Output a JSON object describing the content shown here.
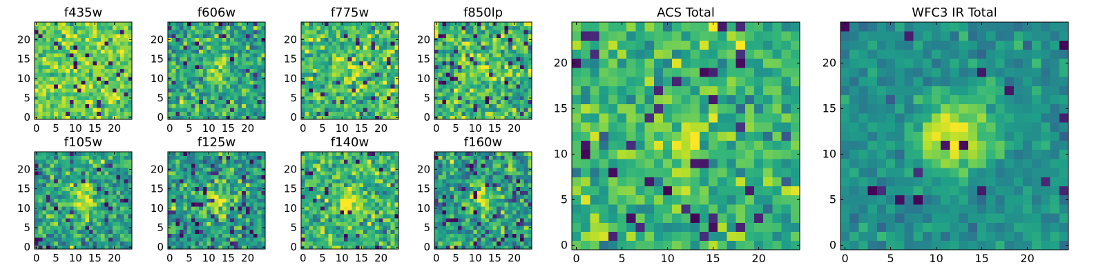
{
  "figure": {
    "background": "#ffffff",
    "colormap": "viridis",
    "colormap_stops": [
      "#440154",
      "#482878",
      "#3e4989",
      "#31688e",
      "#26828e",
      "#1f9e89",
      "#35b779",
      "#6ece58",
      "#b5de2b",
      "#fde725"
    ]
  },
  "chart_data": [
    {
      "type": "heatmap",
      "title": "f435w",
      "grid_size": 25,
      "xlim": [
        -0.5,
        24.5
      ],
      "ylim": [
        -0.5,
        24.5
      ],
      "xticks": [
        0,
        5,
        10,
        15,
        20
      ],
      "yticks": [
        0,
        5,
        10,
        15,
        20
      ],
      "origin": "lower",
      "grid": false,
      "colormap": "viridis",
      "background_level": 0.78,
      "noise": 0.12,
      "dark_pixel_rate": 0.05,
      "source": {
        "x": 12,
        "y": 13,
        "sigma": 2.5,
        "amplitude": 0.02
      }
    },
    {
      "type": "heatmap",
      "title": "f606w",
      "grid_size": 25,
      "xlim": [
        -0.5,
        24.5
      ],
      "ylim": [
        -0.5,
        24.5
      ],
      "xticks": [
        0,
        5,
        10,
        15,
        20
      ],
      "yticks": [
        0,
        5,
        10,
        15,
        20
      ],
      "origin": "lower",
      "grid": false,
      "colormap": "viridis",
      "background_level": 0.6,
      "noise": 0.15,
      "dark_pixel_rate": 0.04,
      "source": {
        "x": 12,
        "y": 13,
        "sigma": 2.2,
        "amplitude": 0.25
      }
    },
    {
      "type": "heatmap",
      "title": "f775w",
      "grid_size": 25,
      "xlim": [
        -0.5,
        24.5
      ],
      "ylim": [
        -0.5,
        24.5
      ],
      "xticks": [
        0,
        5,
        10,
        15,
        20
      ],
      "yticks": [
        0,
        5,
        10,
        15,
        20
      ],
      "origin": "lower",
      "grid": false,
      "colormap": "viridis",
      "background_level": 0.68,
      "noise": 0.15,
      "dark_pixel_rate": 0.05,
      "source": {
        "x": 12,
        "y": 13,
        "sigma": 2.2,
        "amplitude": 0.18
      }
    },
    {
      "type": "heatmap",
      "title": "f850lp",
      "grid_size": 25,
      "xlim": [
        -0.5,
        24.5
      ],
      "ylim": [
        -0.5,
        24.5
      ],
      "xticks": [
        0,
        5,
        10,
        15,
        20
      ],
      "yticks": [
        0,
        5,
        10,
        15,
        20
      ],
      "origin": "lower",
      "grid": false,
      "colormap": "viridis",
      "background_level": 0.66,
      "noise": 0.16,
      "dark_pixel_rate": 0.07,
      "source": {
        "x": 12,
        "y": 13,
        "sigma": 2.4,
        "amplitude": 0.18
      }
    },
    {
      "type": "heatmap",
      "title": "ACS Total",
      "grid_size": 25,
      "xlim": [
        -0.5,
        24.5
      ],
      "ylim": [
        -0.5,
        24.5
      ],
      "xticks": [
        0,
        5,
        10,
        15,
        20
      ],
      "yticks": [
        0,
        5,
        10,
        15,
        20
      ],
      "origin": "lower",
      "grid": false,
      "colormap": "viridis",
      "background_level": 0.66,
      "noise": 0.13,
      "dark_pixel_rate": 0.05,
      "source": {
        "x": 12,
        "y": 12,
        "sigma": 2.2,
        "amplitude": 0.22
      }
    },
    {
      "type": "heatmap",
      "title": "WFC3 IR Total",
      "grid_size": 25,
      "xlim": [
        -0.5,
        24.5
      ],
      "ylim": [
        -0.5,
        24.5
      ],
      "xticks": [
        0,
        5,
        10,
        15,
        20
      ],
      "yticks": [
        0,
        5,
        10,
        15,
        20
      ],
      "origin": "lower",
      "grid": false,
      "colormap": "viridis",
      "background_level": 0.5,
      "noise": 0.07,
      "dark_pixel_rate": 0.02,
      "source": {
        "x": 12,
        "y": 12,
        "sigma": 2.8,
        "amplitude": 0.5
      }
    },
    {
      "type": "heatmap",
      "title": "f105w",
      "grid_size": 25,
      "xlim": [
        -0.5,
        24.5
      ],
      "ylim": [
        -0.5,
        24.5
      ],
      "xticks": [
        0,
        5,
        10,
        15,
        20
      ],
      "yticks": [
        0,
        5,
        10,
        15,
        20
      ],
      "origin": "lower",
      "grid": false,
      "colormap": "viridis",
      "background_level": 0.58,
      "noise": 0.14,
      "dark_pixel_rate": 0.05,
      "source": {
        "x": 12,
        "y": 12,
        "sigma": 2.4,
        "amplitude": 0.42
      }
    },
    {
      "type": "heatmap",
      "title": "f125w",
      "grid_size": 25,
      "xlim": [
        -0.5,
        24.5
      ],
      "ylim": [
        -0.5,
        24.5
      ],
      "xticks": [
        0,
        5,
        10,
        15,
        20
      ],
      "yticks": [
        0,
        5,
        10,
        15,
        20
      ],
      "origin": "lower",
      "grid": false,
      "colormap": "viridis",
      "background_level": 0.55,
      "noise": 0.15,
      "dark_pixel_rate": 0.06,
      "source": {
        "x": 12,
        "y": 12,
        "sigma": 2.4,
        "amplitude": 0.4
      }
    },
    {
      "type": "heatmap",
      "title": "f140w",
      "grid_size": 25,
      "xlim": [
        -0.5,
        24.5
      ],
      "ylim": [
        -0.5,
        24.5
      ],
      "xticks": [
        0,
        5,
        10,
        15,
        20
      ],
      "yticks": [
        0,
        5,
        10,
        15,
        20
      ],
      "origin": "lower",
      "grid": false,
      "colormap": "viridis",
      "background_level": 0.66,
      "noise": 0.14,
      "dark_pixel_rate": 0.04,
      "source": {
        "x": 12,
        "y": 12,
        "sigma": 2.6,
        "amplitude": 0.33
      }
    },
    {
      "type": "heatmap",
      "title": "f160w",
      "grid_size": 25,
      "xlim": [
        -0.5,
        24.5
      ],
      "ylim": [
        -0.5,
        24.5
      ],
      "xticks": [
        0,
        5,
        10,
        15,
        20
      ],
      "yticks": [
        0,
        5,
        10,
        15,
        20
      ],
      "origin": "lower",
      "grid": false,
      "colormap": "viridis",
      "background_level": 0.55,
      "noise": 0.16,
      "dark_pixel_rate": 0.07,
      "source": {
        "x": 12,
        "y": 12,
        "sigma": 2.3,
        "amplitude": 0.4
      }
    }
  ]
}
